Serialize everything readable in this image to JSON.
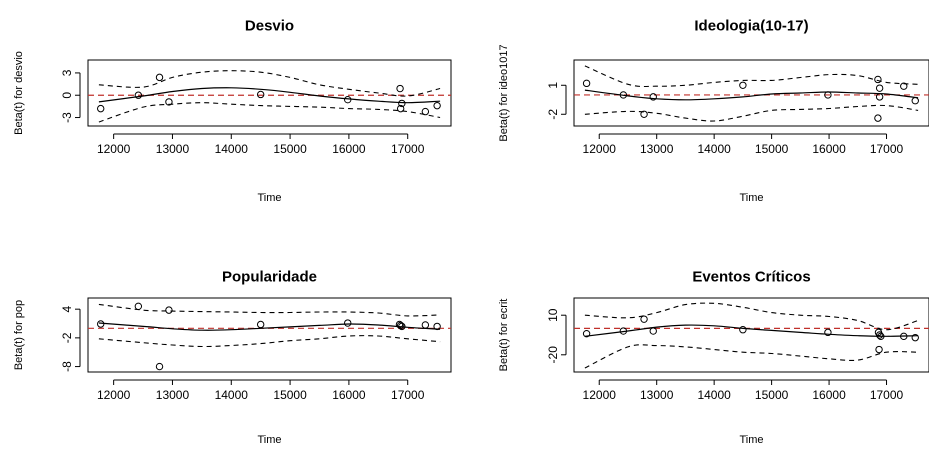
{
  "chart_data": [
    {
      "type": "line",
      "title": "Desvio",
      "xlabel": "Time",
      "ylabel": "Beta(t) for desvio",
      "xlim": [
        11700,
        17600
      ],
      "ylim": [
        -3.6,
        4.2
      ],
      "xticks": [
        12000,
        13000,
        14000,
        15000,
        16000,
        17000
      ],
      "yticks": [
        -3,
        0,
        3
      ],
      "reference_line": 0,
      "series": [
        {
          "role": "fit",
          "x": [
            11750,
            12500,
            13000,
            13500,
            14000,
            14500,
            15000,
            15500,
            16000,
            16500,
            17000,
            17550
          ],
          "y": [
            -0.9,
            -0.1,
            0.5,
            0.9,
            1.0,
            0.8,
            0.4,
            -0.1,
            -0.5,
            -0.8,
            -1.0,
            -0.8
          ]
        },
        {
          "role": "upper",
          "x": [
            11750,
            12500,
            13000,
            13500,
            14000,
            14500,
            15000,
            15500,
            16000,
            16500,
            17000,
            17550
          ],
          "y": [
            1.4,
            1.1,
            2.4,
            3.1,
            3.3,
            3.1,
            2.4,
            1.4,
            0.8,
            0.3,
            -0.1,
            0.9
          ]
        },
        {
          "role": "lower",
          "x": [
            11750,
            12500,
            13000,
            13500,
            14000,
            14500,
            15000,
            15500,
            16000,
            16500,
            17000,
            17550
          ],
          "y": [
            -3.6,
            -1.6,
            -1.2,
            -1.0,
            -1.2,
            -1.4,
            -1.5,
            -1.6,
            -1.8,
            -1.9,
            -2.2,
            -3.0
          ]
        },
        {
          "role": "residuals",
          "x": [
            11780,
            12420,
            12780,
            12940,
            14500,
            15980,
            16870,
            16900,
            16880,
            17300,
            17500
          ],
          "y": [
            -1.8,
            0.0,
            2.4,
            -0.9,
            0.1,
            -0.6,
            0.9,
            -1.1,
            -1.8,
            -2.2,
            -1.4
          ]
        }
      ]
    },
    {
      "type": "line",
      "title": "Ideologia(10-17)",
      "xlabel": "Time",
      "ylabel": "Beta(t) for ideo1017",
      "xlim": [
        11700,
        17600
      ],
      "ylim": [
        -2.8,
        3.2
      ],
      "xticks": [
        12000,
        13000,
        14000,
        15000,
        16000,
        17000
      ],
      "yticks": [
        -2,
        1
      ],
      "reference_line": 0,
      "series": [
        {
          "role": "fit",
          "x": [
            11750,
            12500,
            13000,
            13500,
            14000,
            14500,
            15000,
            15500,
            16000,
            16500,
            17000,
            17550
          ],
          "y": [
            0.5,
            -0.1,
            -0.4,
            -0.5,
            -0.4,
            -0.2,
            0.1,
            0.2,
            0.3,
            0.2,
            0.1,
            -0.3
          ]
        },
        {
          "role": "upper",
          "x": [
            11750,
            12500,
            13000,
            13500,
            14000,
            14500,
            15000,
            15500,
            16000,
            16500,
            17000,
            17550
          ],
          "y": [
            3.0,
            1.1,
            0.9,
            1.0,
            1.3,
            1.5,
            1.5,
            1.8,
            2.1,
            2.0,
            1.3,
            1.1
          ]
        },
        {
          "role": "lower",
          "x": [
            11750,
            12500,
            13000,
            13500,
            14000,
            14500,
            15000,
            15500,
            16000,
            16500,
            17000,
            17550
          ],
          "y": [
            -2.0,
            -1.7,
            -1.9,
            -2.4,
            -2.7,
            -2.2,
            -1.6,
            -1.5,
            -1.4,
            -1.2,
            -1.1,
            -1.6
          ]
        },
        {
          "role": "residuals",
          "x": [
            11780,
            12420,
            12780,
            12940,
            14500,
            15980,
            16850,
            16880,
            16880,
            16850,
            17300,
            17500
          ],
          "y": [
            1.2,
            0.0,
            -2.0,
            -0.2,
            1.0,
            0.0,
            1.6,
            0.7,
            -0.2,
            -2.4,
            0.9,
            -0.6
          ]
        }
      ]
    },
    {
      "type": "line",
      "title": "Popularidade",
      "xlabel": "Time",
      "ylabel": "Beta(t) for pop",
      "xlim": [
        11700,
        17600
      ],
      "ylim": [
        -8.3,
        5.5
      ],
      "xticks": [
        12000,
        13000,
        14000,
        15000,
        16000,
        17000
      ],
      "yticks": [
        -8,
        -2,
        4
      ],
      "reference_line": 0,
      "series": [
        {
          "role": "fit",
          "x": [
            11750,
            12500,
            13000,
            13500,
            14000,
            14500,
            15000,
            15500,
            16000,
            16500,
            17000,
            17550
          ],
          "y": [
            1.1,
            0.4,
            -0.1,
            -0.4,
            -0.3,
            0.0,
            0.3,
            0.6,
            0.9,
            0.7,
            0.2,
            -0.2
          ]
        },
        {
          "role": "upper",
          "x": [
            11750,
            12500,
            13000,
            13500,
            14000,
            14500,
            15000,
            15500,
            16000,
            16500,
            17000,
            17550
          ],
          "y": [
            5.0,
            3.8,
            3.6,
            3.5,
            3.4,
            3.3,
            3.3,
            3.4,
            3.4,
            3.2,
            2.6,
            2.8
          ]
        },
        {
          "role": "lower",
          "x": [
            11750,
            12500,
            13000,
            13500,
            14000,
            14500,
            15000,
            15500,
            16000,
            16500,
            17000,
            17550
          ],
          "y": [
            -2.2,
            -3.0,
            -3.5,
            -3.8,
            -3.6,
            -3.2,
            -2.6,
            -2.2,
            -1.6,
            -1.6,
            -2.2,
            -2.8
          ]
        },
        {
          "role": "residuals",
          "x": [
            11780,
            12420,
            12780,
            12940,
            14500,
            15980,
            16860,
            16880,
            16900,
            17300,
            17500
          ],
          "y": [
            0.9,
            4.6,
            -8.0,
            3.8,
            0.8,
            1.1,
            0.8,
            0.6,
            0.4,
            0.7,
            0.4
          ]
        }
      ]
    },
    {
      "type": "line",
      "title": "Eventos Críticos",
      "xlabel": "Time",
      "ylabel": "Beta(t) for ecrit",
      "xlim": [
        11700,
        17600
      ],
      "ylim": [
        -30,
        20
      ],
      "xticks": [
        12000,
        13000,
        14000,
        15000,
        16000,
        17000
      ],
      "yticks": [
        -20,
        10
      ],
      "reference_line": 0,
      "series": [
        {
          "role": "fit",
          "x": [
            11750,
            12500,
            13000,
            13500,
            14000,
            14500,
            15000,
            15500,
            16000,
            16500,
            17000,
            17550
          ],
          "y": [
            -6,
            -2,
            1,
            2.5,
            2,
            0,
            -1.5,
            -3,
            -4.5,
            -5.5,
            -6,
            -5.5
          ]
        },
        {
          "role": "upper",
          "x": [
            11750,
            12500,
            13000,
            13500,
            14000,
            14500,
            15000,
            15500,
            16000,
            16500,
            17000,
            17550
          ],
          "y": [
            10,
            8,
            12,
            18,
            19,
            16,
            12,
            10,
            9,
            6,
            -1,
            6
          ]
        },
        {
          "role": "lower",
          "x": [
            11750,
            12500,
            13000,
            13500,
            14000,
            14500,
            15000,
            15500,
            16000,
            16500,
            17000,
            17550
          ],
          "y": [
            -30,
            -14,
            -13,
            -14,
            -16,
            -18,
            -19,
            -21,
            -23,
            -24,
            -18,
            -18
          ]
        },
        {
          "role": "residuals",
          "x": [
            11780,
            12420,
            12780,
            12940,
            14500,
            15980,
            16860,
            16880,
            16900,
            16870,
            17300,
            17500
          ],
          "y": [
            -4,
            -2,
            7,
            -2,
            -1,
            -3,
            -3,
            -5,
            -6,
            -16,
            -6,
            -7
          ]
        }
      ]
    }
  ]
}
